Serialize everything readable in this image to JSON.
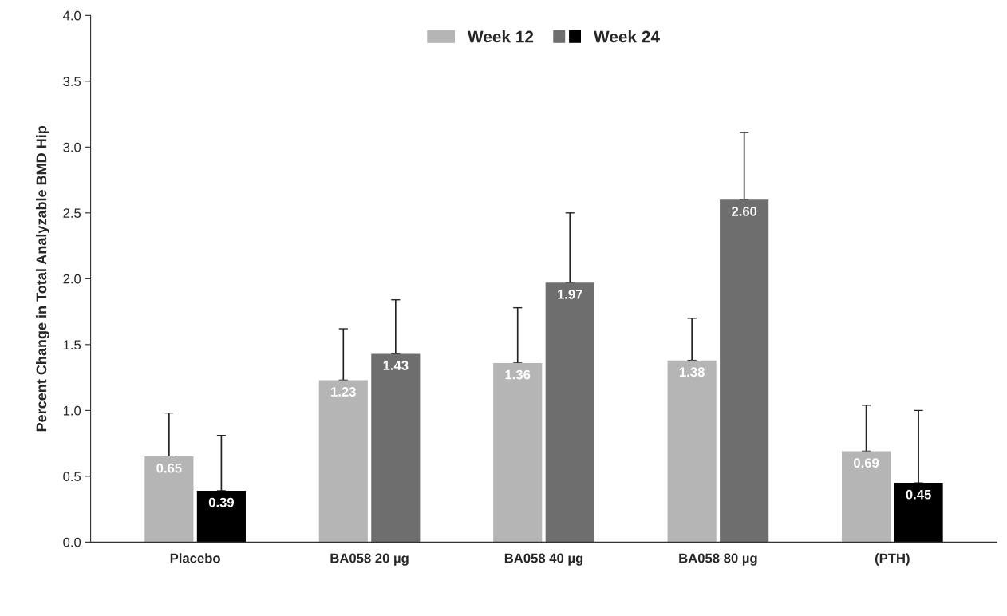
{
  "chart_data": {
    "type": "bar",
    "ylabel": "Percent Change in Total Analyzable BMD Hip",
    "categories": [
      "Placebo",
      "BA058 20 µg",
      "BA058 40 µg",
      "BA058 80 µg",
      "(PTH)"
    ],
    "series": [
      {
        "name": "Week 12",
        "color": "#b5b5b5",
        "colors": [
          "#b5b5b5",
          "#b5b5b5",
          "#b5b5b5",
          "#b5b5b5",
          "#b5b5b5"
        ],
        "values": [
          0.65,
          1.23,
          1.36,
          1.38,
          0.69
        ],
        "value_labels": [
          "0.65",
          "1.23",
          "1.36",
          "1.38",
          "0.69"
        ],
        "errors": [
          [
            0.65,
            0.98
          ],
          [
            1.23,
            1.62
          ],
          [
            1.36,
            1.78
          ],
          [
            1.38,
            1.7
          ],
          [
            0.69,
            1.04
          ]
        ]
      },
      {
        "name": "Week 24",
        "color": "#6e6e6e",
        "colors": [
          "#000000",
          "#6e6e6e",
          "#6e6e6e",
          "#6e6e6e",
          "#000000"
        ],
        "values": [
          0.39,
          1.43,
          1.97,
          2.6,
          0.45
        ],
        "value_labels": [
          "0.39",
          "1.43",
          "1.97",
          "2.60",
          "0.45"
        ],
        "errors": [
          [
            0.39,
            0.81
          ],
          [
            1.43,
            1.84
          ],
          [
            1.97,
            2.5
          ],
          [
            2.6,
            3.11
          ],
          [
            0.45,
            1.0
          ]
        ]
      }
    ],
    "ylim": [
      0,
      4.0
    ],
    "yticks": [
      {
        "value": 0,
        "label": "0.0"
      },
      {
        "value": 0.5,
        "label": "0.5"
      },
      {
        "value": 1.0,
        "label": "1.0"
      },
      {
        "value": 1.5,
        "label": "1.5"
      },
      {
        "value": 2.0,
        "label": "2.0"
      },
      {
        "value": 2.5,
        "label": "2.5"
      },
      {
        "value": 3.0,
        "label": "3.0"
      },
      {
        "value": 3.5,
        "label": "3.5"
      },
      {
        "value": 4.0,
        "label": "4.0"
      }
    ],
    "grid": false,
    "legend": "top"
  }
}
